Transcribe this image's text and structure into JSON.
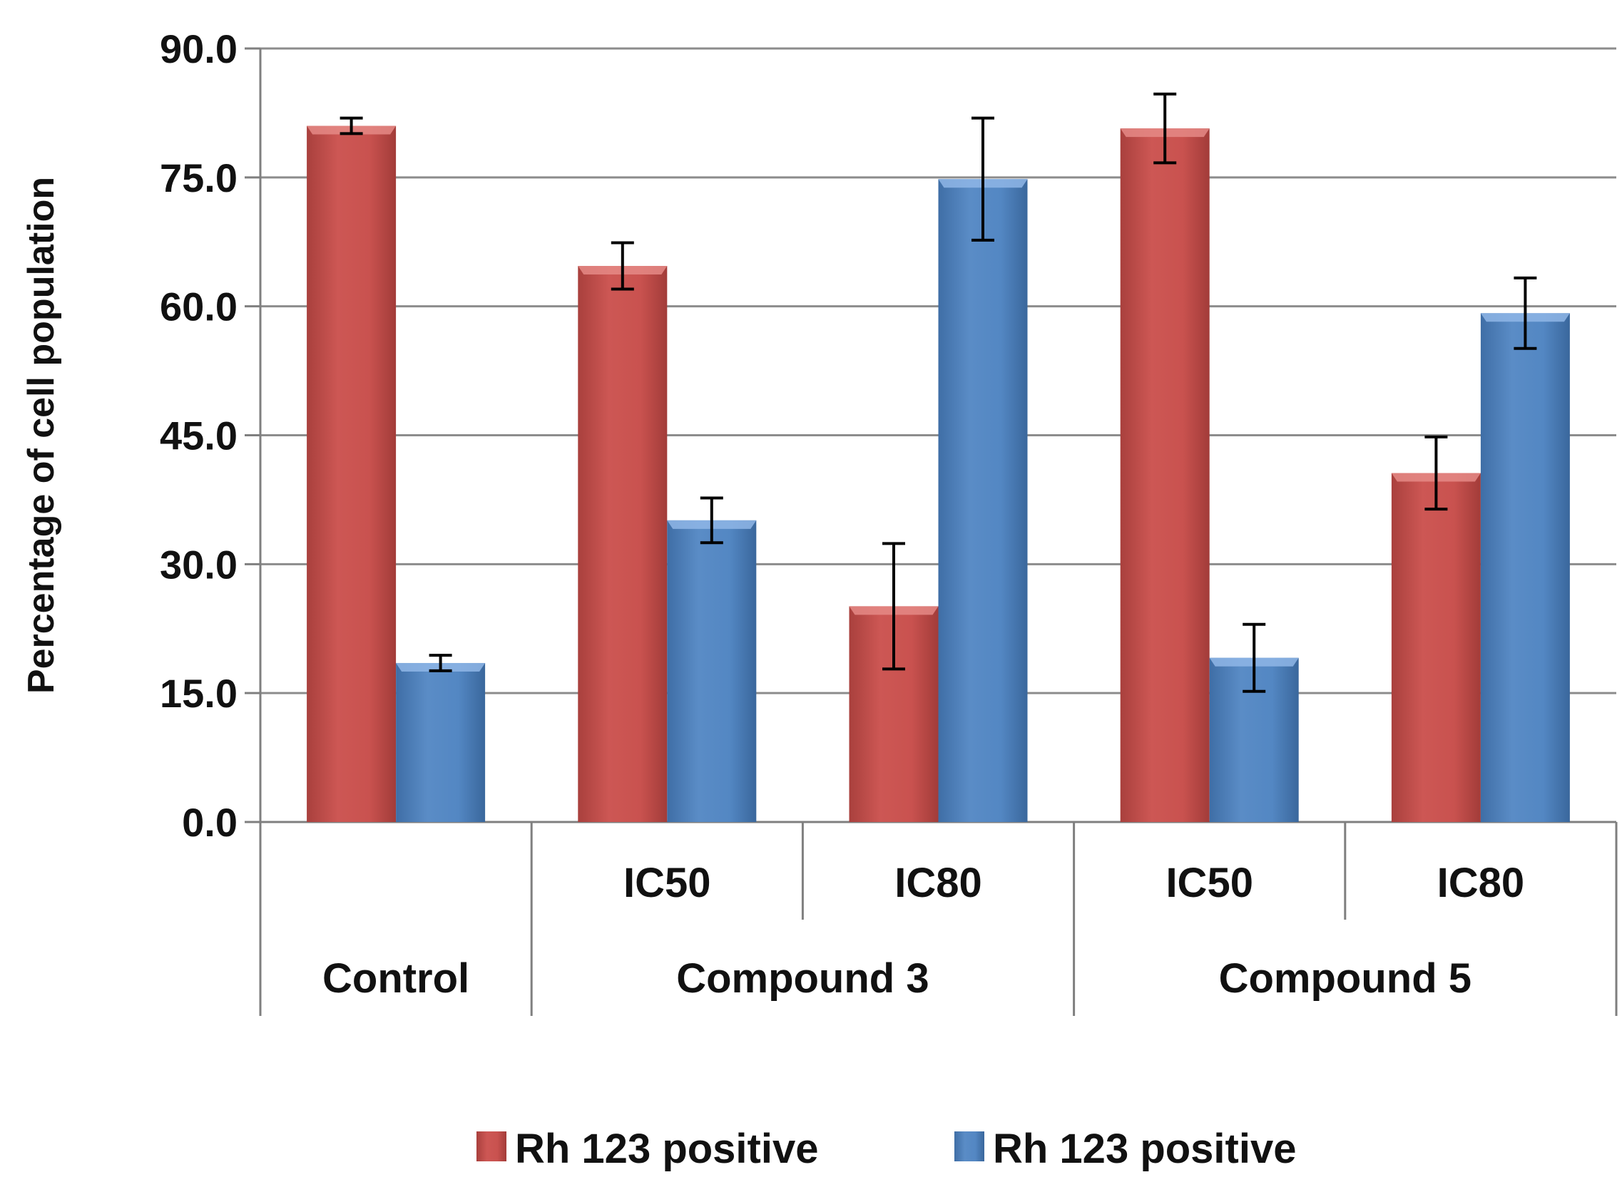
{
  "chart_data": {
    "type": "bar",
    "title": "",
    "xlabel": "",
    "ylabel": "Percentage of cell population",
    "ylim": [
      0,
      90
    ],
    "yticks": [
      "0.0",
      "15.0",
      "30.0",
      "45.0",
      "60.0",
      "75.0",
      "90.0"
    ],
    "grid": true,
    "categories": [
      "Control",
      "Compound 3 IC50",
      "Compound 3 IC80",
      "Compound 5 IC50",
      "Compound 5 IC80"
    ],
    "x_sublabels": [
      "",
      "IC50",
      "IC80",
      "IC50",
      "IC80"
    ],
    "x_groups": [
      {
        "label": "Control",
        "span": 1
      },
      {
        "label": "Compound 3",
        "span": 2
      },
      {
        "label": "Compound 5",
        "span": 2
      }
    ],
    "series": [
      {
        "name": "Rh 123 positive",
        "color": "#C0504D",
        "values": [
          81.0,
          64.7,
          25.1,
          80.7,
          40.6
        ],
        "errors": [
          0.9,
          2.7,
          7.3,
          4.0,
          4.2
        ]
      },
      {
        "name": "Rh 123 positive",
        "color": "#4F81BD",
        "values": [
          18.5,
          35.1,
          74.8,
          19.1,
          59.2
        ],
        "errors": [
          0.9,
          2.6,
          7.1,
          3.9,
          4.1
        ]
      }
    ],
    "legend_position": "bottom"
  }
}
